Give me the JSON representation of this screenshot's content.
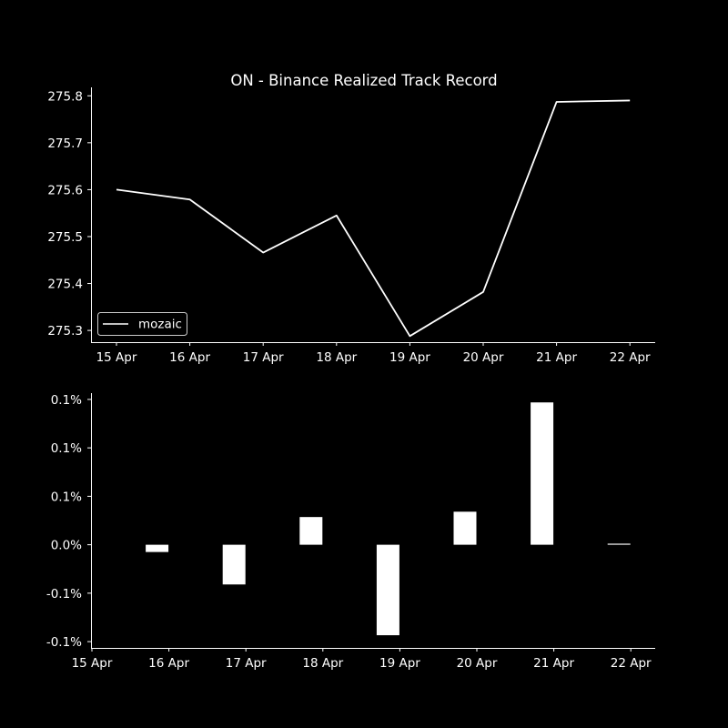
{
  "colors": {
    "background": "#000000",
    "foreground": "#ffffff"
  },
  "chart_data": [
    {
      "type": "line",
      "title": "ON - Binance Realized Track Record",
      "x": [
        "2024-04-15",
        "2024-04-16",
        "2024-04-17",
        "2024-04-18",
        "2024-04-19",
        "2024-04-20",
        "2024-04-21",
        "2024-04-22"
      ],
      "xticks": [
        "15 Apr",
        "16 Apr",
        "17 Apr",
        "18 Apr",
        "19 Apr",
        "20 Apr",
        "21 Apr",
        "22 Apr"
      ],
      "series": [
        {
          "name": "mozaic",
          "values": [
            275.6,
            275.579,
            275.466,
            275.545,
            275.288,
            275.382,
            275.787,
            275.79
          ]
        }
      ],
      "yticks": [
        "275.3",
        "275.4",
        "275.5",
        "275.6",
        "275.7",
        "275.8"
      ],
      "ytick_values": [
        275.3,
        275.4,
        275.5,
        275.6,
        275.7,
        275.8
      ],
      "ylim": [
        275.275,
        275.818
      ],
      "legend": "lower-left",
      "grid": false
    },
    {
      "type": "bar",
      "categories": [
        "2024-04-16",
        "2024-04-17",
        "2024-04-18",
        "2024-04-19",
        "2024-04-20",
        "2024-04-21",
        "2024-04-22"
      ],
      "xticks": [
        "15 Apr",
        "16 Apr",
        "17 Apr",
        "18 Apr",
        "19 Apr",
        "20 Apr",
        "21 Apr",
        "22 Apr"
      ],
      "values": [
        -0.0075,
        -0.041,
        0.0286,
        -0.0934,
        0.0341,
        0.1469,
        0.0011
      ],
      "yticks": [
        "-0.1%",
        "-0.1%",
        "0.0%",
        "0.1%",
        "0.1%",
        "0.1%"
      ],
      "ytick_values": [
        -0.1,
        -0.05,
        0.0,
        0.05,
        0.1,
        0.15
      ],
      "ylim": [
        -0.1065,
        0.1565
      ],
      "grid": false
    }
  ]
}
